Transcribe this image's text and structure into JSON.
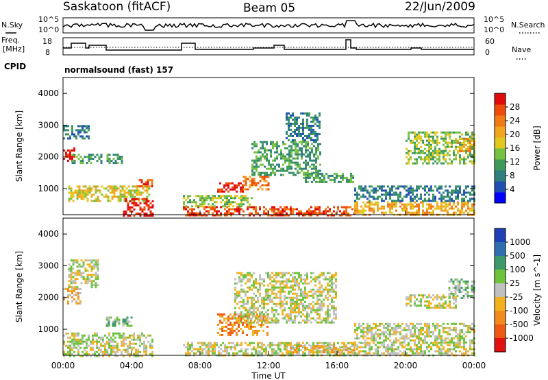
{
  "header": {
    "station": "Saskatoon (fitACF)",
    "beam": "Beam 05",
    "date": "22/Jun/2009"
  },
  "noise_panel": {
    "left_label": "N.Sky",
    "right_label": "N.Search",
    "left_ticks": [
      "10^5",
      "10^0"
    ],
    "right_ticks": [
      "10^5",
      "10^0"
    ]
  },
  "freq_panel": {
    "left_label_line1": "Freq.",
    "left_label_line2": "[MHz]",
    "right_label": "Nave",
    "left_ticks": [
      "18",
      "8"
    ],
    "right_ticks": [
      "60",
      "0"
    ]
  },
  "cpid": {
    "label": "CPID",
    "text": "normalsound (fast) 157"
  },
  "colors": {
    "power_scale": [
      "#0000ff",
      "#1e4fb3",
      "#2f7f7f",
      "#3d9a5a",
      "#76c043",
      "#e3c81e",
      "#f2a51f",
      "#f07a15",
      "#ee4c0a",
      "#e10b0b"
    ],
    "velocity_scale": [
      "#1f3fb8",
      "#2f6fb0",
      "#3c9a6a",
      "#6cc33c",
      "#c0c0c0",
      "#f2b21e",
      "#f28a1c",
      "#ef5a12",
      "#e31010"
    ]
  },
  "chart_data": [
    {
      "type": "heatmap",
      "name": "power",
      "xlabel": "",
      "ylabel": "Slant Range [km]",
      "xlim": [
        0,
        24
      ],
      "ylim": [
        180,
        4500
      ],
      "y_ticks": [
        1000,
        2000,
        3000,
        4000
      ],
      "colorbar": {
        "label": "Power [dB]",
        "ticks": [
          4,
          8,
          12,
          16,
          20,
          24,
          28
        ],
        "range": [
          0,
          32
        ]
      },
      "regions": [
        {
          "t0": 0.0,
          "t1": 0.7,
          "r0": 1900,
          "r1": 2300,
          "color": 9
        },
        {
          "t0": 0.0,
          "t1": 1.5,
          "r0": 2600,
          "r1": 3000,
          "color": 2
        },
        {
          "t0": 0.5,
          "t1": 3.5,
          "r0": 1800,
          "r1": 2100,
          "color": 3
        },
        {
          "t0": 0.3,
          "t1": 5.0,
          "r0": 600,
          "r1": 1100,
          "color": 5
        },
        {
          "t0": 3.5,
          "t1": 5.2,
          "r0": 180,
          "r1": 700,
          "color": 9
        },
        {
          "t0": 4.3,
          "t1": 5.2,
          "r0": 1100,
          "r1": 1300,
          "color": 8
        },
        {
          "t0": 7.0,
          "t1": 17.0,
          "r0": 180,
          "r1": 450,
          "color": 8
        },
        {
          "t0": 7.0,
          "t1": 11.0,
          "r0": 450,
          "r1": 800,
          "color": 4
        },
        {
          "t0": 9.0,
          "t1": 10.5,
          "r0": 900,
          "r1": 1200,
          "color": 9
        },
        {
          "t0": 10.5,
          "t1": 12.0,
          "r0": 1000,
          "r1": 1400,
          "color": 7
        },
        {
          "t0": 11.0,
          "t1": 15.0,
          "r0": 1400,
          "r1": 2500,
          "color": 3
        },
        {
          "t0": 13.0,
          "t1": 15.0,
          "r0": 2500,
          "r1": 3400,
          "color": 2
        },
        {
          "t0": 14.0,
          "t1": 17.0,
          "r0": 1200,
          "r1": 1500,
          "color": 3
        },
        {
          "t0": 17.0,
          "t1": 24.0,
          "r0": 180,
          "r1": 600,
          "color": 6
        },
        {
          "t0": 17.0,
          "t1": 24.0,
          "r0": 600,
          "r1": 1100,
          "color": 2
        },
        {
          "t0": 20.0,
          "t1": 24.0,
          "r0": 1800,
          "r1": 2800,
          "color": 4
        },
        {
          "t0": 23.0,
          "t1": 24.0,
          "r0": 2200,
          "r1": 2600,
          "color": 6
        }
      ]
    },
    {
      "type": "heatmap",
      "name": "velocity",
      "xlabel": "Time UT",
      "ylabel": "Slant Range [km]",
      "xlim": [
        0,
        24
      ],
      "ylim": [
        180,
        4500
      ],
      "y_ticks": [
        1000,
        2000,
        3000,
        4000
      ],
      "x_ticks": [
        "00:00",
        "04:00",
        "08:00",
        "12:00",
        "16:00",
        "20:00",
        "00:00"
      ],
      "colorbar": {
        "label": "Velocity [m s^-1]",
        "ticks": [
          "1000",
          "500",
          "100",
          "25",
          "-25",
          "-100",
          "-500",
          "-1000"
        ]
      },
      "regions": [
        {
          "t0": 0.0,
          "t1": 1.0,
          "r0": 1800,
          "r1": 2300,
          "color": 5
        },
        {
          "t0": 0.3,
          "t1": 2.0,
          "r0": 2300,
          "r1": 3200,
          "color": 4
        },
        {
          "t0": 2.5,
          "t1": 4.0,
          "r0": 1100,
          "r1": 1400,
          "color": 3
        },
        {
          "t0": 0.0,
          "t1": 5.2,
          "r0": 180,
          "r1": 900,
          "color": 4
        },
        {
          "t0": 9.0,
          "t1": 12.0,
          "r0": 800,
          "r1": 1500,
          "color": 6
        },
        {
          "t0": 7.0,
          "t1": 17.0,
          "r0": 180,
          "r1": 600,
          "color": 4
        },
        {
          "t0": 10.0,
          "t1": 16.0,
          "r0": 1200,
          "r1": 2800,
          "color": 4
        },
        {
          "t0": 13.0,
          "t1": 17.0,
          "r0": 300,
          "r1": 500,
          "color": 5
        },
        {
          "t0": 17.0,
          "t1": 24.0,
          "r0": 180,
          "r1": 600,
          "color": 4
        },
        {
          "t0": 17.0,
          "t1": 24.0,
          "r0": 600,
          "r1": 1200,
          "color": 4
        },
        {
          "t0": 22.5,
          "t1": 24.0,
          "r0": 2000,
          "r1": 2600,
          "color": 3
        },
        {
          "t0": 20.0,
          "t1": 23.0,
          "r0": 1700,
          "r1": 2100,
          "color": 4
        }
      ]
    }
  ]
}
